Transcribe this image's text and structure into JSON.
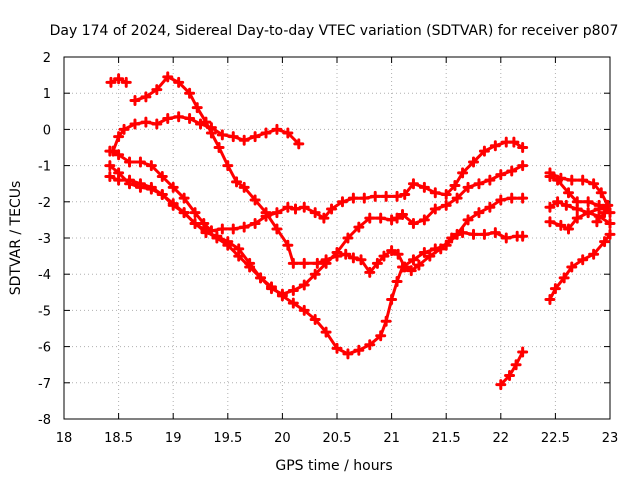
{
  "chart_data": {
    "type": "scatter",
    "title": "Day 174 of 2024, Sidereal Day-to-day VTEC variation (SDTVAR) for receiver p807",
    "xlabel": "GPS time / hours",
    "ylabel": "SDTVAR / TECUs",
    "xlim": [
      18,
      23
    ],
    "ylim": [
      -8,
      2
    ],
    "x_ticks": [
      "18",
      "18.5",
      "19",
      "19.5",
      "20",
      "20.5",
      "21",
      "21.5",
      "22",
      "22.5",
      "23"
    ],
    "y_ticks": [
      "-8",
      "-7",
      "-6",
      "-5",
      "-4",
      "-3",
      "-2",
      "-1",
      "0",
      "1",
      "2"
    ],
    "grid": true,
    "marker": "+",
    "color": "#ff0000",
    "series": [
      {
        "name": "s1",
        "points": [
          [
            18.43,
            1.3
          ],
          [
            18.5,
            1.4
          ],
          [
            18.57,
            1.3
          ]
        ]
      },
      {
        "name": "s2",
        "points": [
          [
            18.65,
            0.8
          ],
          [
            18.75,
            0.9
          ],
          [
            18.85,
            1.1
          ],
          [
            18.95,
            1.45
          ],
          [
            19.05,
            1.3
          ],
          [
            19.15,
            1.0
          ],
          [
            19.22,
            0.6
          ],
          [
            19.3,
            0.2
          ],
          [
            19.35,
            -0.1
          ],
          [
            19.42,
            -0.5
          ],
          [
            19.5,
            -1.0
          ],
          [
            19.58,
            -1.45
          ],
          [
            19.65,
            -1.6
          ],
          [
            19.75,
            -1.95
          ],
          [
            19.85,
            -2.3
          ],
          [
            19.95,
            -2.75
          ],
          [
            20.05,
            -3.2
          ],
          [
            20.1,
            -3.7
          ],
          [
            20.2,
            -3.7
          ],
          [
            20.32,
            -3.7
          ],
          [
            20.4,
            -3.6
          ],
          [
            20.5,
            -3.5
          ],
          [
            20.58,
            -3.45
          ],
          [
            20.65,
            -3.55
          ],
          [
            20.72,
            -3.6
          ],
          [
            20.8,
            -3.95
          ],
          [
            20.87,
            -3.7
          ],
          [
            20.93,
            -3.5
          ],
          [
            21.0,
            -3.35
          ],
          [
            21.06,
            -3.45
          ],
          [
            21.12,
            -3.8
          ],
          [
            21.18,
            -3.9
          ],
          [
            21.25,
            -3.75
          ],
          [
            21.35,
            -3.5
          ],
          [
            21.45,
            -3.3
          ],
          [
            21.55,
            -3.0
          ],
          [
            21.65,
            -2.85
          ],
          [
            21.75,
            -2.9
          ],
          [
            21.85,
            -2.9
          ],
          [
            21.95,
            -2.85
          ],
          [
            22.05,
            -3.0
          ],
          [
            22.15,
            -2.95
          ],
          [
            22.2,
            -2.95
          ]
        ]
      },
      {
        "name": "s3",
        "points": [
          [
            18.45,
            -0.6
          ],
          [
            18.5,
            -0.2
          ],
          [
            18.55,
            0.0
          ],
          [
            18.65,
            0.15
          ],
          [
            18.75,
            0.2
          ],
          [
            18.85,
            0.15
          ],
          [
            18.95,
            0.3
          ],
          [
            19.05,
            0.35
          ],
          [
            19.15,
            0.3
          ],
          [
            19.25,
            0.15
          ],
          [
            19.35,
            0.05
          ],
          [
            19.45,
            -0.15
          ],
          [
            19.55,
            -0.2
          ],
          [
            19.65,
            -0.3
          ],
          [
            19.75,
            -0.2
          ],
          [
            19.85,
            -0.1
          ],
          [
            19.95,
            0.0
          ],
          [
            20.05,
            -0.1
          ],
          [
            20.15,
            -0.4
          ]
        ]
      },
      {
        "name": "s4",
        "points": [
          [
            18.42,
            -0.6
          ],
          [
            18.5,
            -0.7
          ],
          [
            18.6,
            -0.9
          ],
          [
            18.7,
            -0.9
          ],
          [
            18.8,
            -1.0
          ],
          [
            18.9,
            -1.3
          ],
          [
            19.0,
            -1.6
          ],
          [
            19.1,
            -1.9
          ],
          [
            19.2,
            -2.3
          ],
          [
            19.28,
            -2.6
          ],
          [
            19.35,
            -2.8
          ],
          [
            19.45,
            -2.75
          ],
          [
            19.55,
            -2.75
          ],
          [
            19.65,
            -2.7
          ],
          [
            19.75,
            -2.6
          ],
          [
            19.85,
            -2.4
          ],
          [
            19.95,
            -2.3
          ],
          [
            20.05,
            -2.15
          ],
          [
            20.12,
            -2.2
          ],
          [
            20.2,
            -2.15
          ],
          [
            20.3,
            -2.3
          ],
          [
            20.38,
            -2.45
          ],
          [
            20.45,
            -2.2
          ],
          [
            20.55,
            -2.0
          ],
          [
            20.65,
            -1.9
          ],
          [
            20.75,
            -1.9
          ],
          [
            20.85,
            -1.85
          ],
          [
            20.95,
            -1.85
          ],
          [
            21.05,
            -1.85
          ],
          [
            21.12,
            -1.8
          ],
          [
            21.2,
            -1.5
          ],
          [
            21.3,
            -1.6
          ],
          [
            21.4,
            -1.75
          ],
          [
            21.5,
            -1.8
          ],
          [
            21.58,
            -1.55
          ],
          [
            21.65,
            -1.2
          ],
          [
            21.75,
            -0.9
          ],
          [
            21.85,
            -0.6
          ],
          [
            21.95,
            -0.45
          ],
          [
            22.05,
            -0.35
          ],
          [
            22.12,
            -0.35
          ],
          [
            22.2,
            -0.5
          ]
        ]
      },
      {
        "name": "s5",
        "points": [
          [
            18.42,
            -1.3
          ],
          [
            18.5,
            -1.4
          ],
          [
            18.6,
            -1.4
          ],
          [
            18.7,
            -1.5
          ],
          [
            18.8,
            -1.6
          ],
          [
            18.9,
            -1.8
          ],
          [
            19.0,
            -2.05
          ],
          [
            19.1,
            -2.3
          ],
          [
            19.2,
            -2.6
          ],
          [
            19.3,
            -2.85
          ],
          [
            19.4,
            -2.95
          ],
          [
            19.5,
            -3.1
          ],
          [
            19.6,
            -3.3
          ],
          [
            19.7,
            -3.7
          ],
          [
            19.8,
            -4.1
          ],
          [
            19.9,
            -4.4
          ],
          [
            20.0,
            -4.55
          ],
          [
            20.1,
            -4.45
          ],
          [
            20.2,
            -4.3
          ],
          [
            20.3,
            -4.0
          ],
          [
            20.4,
            -3.7
          ],
          [
            20.5,
            -3.4
          ],
          [
            20.6,
            -3.0
          ],
          [
            20.7,
            -2.7
          ],
          [
            20.8,
            -2.45
          ],
          [
            20.9,
            -2.45
          ],
          [
            21.0,
            -2.5
          ],
          [
            21.05,
            -2.45
          ],
          [
            21.1,
            -2.35
          ],
          [
            21.2,
            -2.6
          ],
          [
            21.3,
            -2.5
          ],
          [
            21.4,
            -2.2
          ],
          [
            21.5,
            -2.1
          ],
          [
            21.6,
            -1.9
          ],
          [
            21.7,
            -1.6
          ],
          [
            21.8,
            -1.5
          ],
          [
            21.9,
            -1.4
          ],
          [
            22.0,
            -1.25
          ],
          [
            22.1,
            -1.15
          ],
          [
            22.2,
            -1.0
          ]
        ]
      },
      {
        "name": "s6",
        "points": [
          [
            18.42,
            -1.0
          ],
          [
            18.5,
            -1.2
          ],
          [
            18.6,
            -1.5
          ],
          [
            18.7,
            -1.6
          ],
          [
            18.8,
            -1.65
          ],
          [
            18.9,
            -1.8
          ],
          [
            19.0,
            -2.1
          ],
          [
            19.1,
            -2.3
          ],
          [
            19.2,
            -2.6
          ],
          [
            19.3,
            -2.8
          ],
          [
            19.4,
            -3.0
          ],
          [
            19.5,
            -3.2
          ],
          [
            19.6,
            -3.5
          ],
          [
            19.7,
            -3.8
          ],
          [
            19.8,
            -4.1
          ],
          [
            19.9,
            -4.35
          ],
          [
            20.0,
            -4.6
          ],
          [
            20.1,
            -4.8
          ],
          [
            20.2,
            -5.0
          ],
          [
            20.3,
            -5.25
          ],
          [
            20.4,
            -5.6
          ],
          [
            20.5,
            -6.05
          ],
          [
            20.6,
            -6.2
          ],
          [
            20.7,
            -6.1
          ],
          [
            20.8,
            -5.95
          ],
          [
            20.9,
            -5.7
          ],
          [
            20.95,
            -5.3
          ],
          [
            21.0,
            -4.7
          ],
          [
            21.05,
            -4.2
          ],
          [
            21.1,
            -3.8
          ],
          [
            21.2,
            -3.6
          ],
          [
            21.3,
            -3.4
          ],
          [
            21.4,
            -3.3
          ],
          [
            21.5,
            -3.2
          ],
          [
            21.6,
            -2.9
          ],
          [
            21.7,
            -2.5
          ],
          [
            21.8,
            -2.3
          ],
          [
            21.9,
            -2.15
          ],
          [
            22.0,
            -1.95
          ],
          [
            22.1,
            -1.9
          ],
          [
            22.2,
            -1.9
          ]
        ]
      },
      {
        "name": "s7",
        "points": [
          [
            22.0,
            -7.05
          ],
          [
            22.08,
            -6.8
          ],
          [
            22.14,
            -6.5
          ],
          [
            22.2,
            -6.15
          ]
        ]
      },
      {
        "name": "s8",
        "points": [
          [
            22.45,
            -4.7
          ],
          [
            22.5,
            -4.4
          ],
          [
            22.58,
            -4.1
          ],
          [
            22.65,
            -3.8
          ],
          [
            22.75,
            -3.6
          ],
          [
            22.85,
            -3.45
          ],
          [
            22.95,
            -3.1
          ],
          [
            23.0,
            -2.9
          ]
        ]
      },
      {
        "name": "s9",
        "points": [
          [
            22.45,
            -2.15
          ],
          [
            22.52,
            -2.0
          ],
          [
            22.6,
            -2.1
          ],
          [
            22.7,
            -2.2
          ],
          [
            22.8,
            -2.3
          ],
          [
            22.9,
            -2.4
          ],
          [
            23.0,
            -2.6
          ]
        ]
      },
      {
        "name": "s10",
        "points": [
          [
            22.45,
            -2.55
          ],
          [
            22.55,
            -2.65
          ],
          [
            22.62,
            -2.75
          ],
          [
            22.7,
            -2.45
          ],
          [
            22.8,
            -2.3
          ],
          [
            22.9,
            -2.2
          ],
          [
            22.97,
            -2.1
          ]
        ]
      },
      {
        "name": "s11",
        "points": [
          [
            22.45,
            -1.2
          ],
          [
            22.55,
            -1.35
          ],
          [
            22.65,
            -1.4
          ],
          [
            22.75,
            -1.4
          ],
          [
            22.85,
            -1.5
          ],
          [
            22.92,
            -1.75
          ],
          [
            22.98,
            -2.1
          ],
          [
            22.95,
            -2.3
          ],
          [
            22.88,
            -2.55
          ]
        ]
      },
      {
        "name": "s12",
        "points": [
          [
            22.45,
            -1.3
          ],
          [
            22.52,
            -1.4
          ],
          [
            22.62,
            -1.75
          ],
          [
            22.7,
            -2.0
          ],
          [
            22.8,
            -2.0
          ],
          [
            22.9,
            -2.1
          ],
          [
            23.0,
            -2.3
          ]
        ]
      }
    ]
  }
}
